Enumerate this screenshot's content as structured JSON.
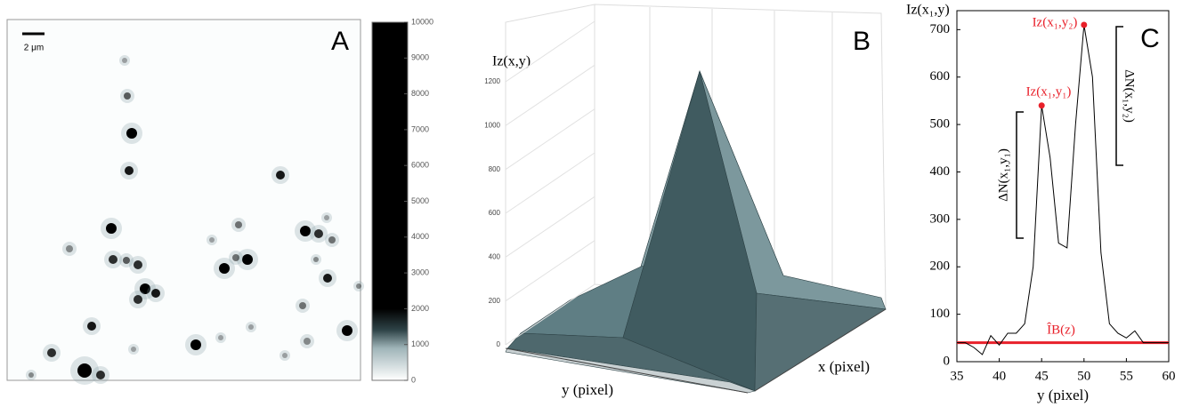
{
  "chart_data": [
    {
      "type": "image",
      "panel_label": "A",
      "scale_bar_label": "2 μm",
      "colorbar_lim": [
        0,
        10000
      ],
      "colorbar_ticks": [
        0,
        1000,
        2000,
        3000,
        4000,
        5000,
        6000,
        7000,
        8000,
        9000,
        10000
      ]
    },
    {
      "type": "surface",
      "panel_label": "B",
      "z_label": "Iz(x,y)",
      "x_label": "y (pixel)",
      "y_label": "x (pixel)",
      "zlim": [
        0,
        1200
      ],
      "zticks": [
        0,
        200,
        400,
        600,
        800,
        1000,
        1200
      ],
      "grid": true
    },
    {
      "type": "line",
      "panel_label": "C",
      "y_label": "Iz(x₁,y)",
      "x_label": "y (pixel)",
      "color": "#000000",
      "x": [
        35,
        36,
        37,
        38,
        39,
        40,
        41,
        42,
        43,
        44,
        45,
        46,
        47,
        48,
        49,
        50,
        51,
        52,
        53,
        54,
        55,
        56,
        57,
        58,
        59,
        60
      ],
      "values": [
        40,
        40,
        30,
        15,
        55,
        35,
        60,
        60,
        80,
        200,
        540,
        430,
        250,
        240,
        500,
        710,
        600,
        230,
        80,
        60,
        50,
        65,
        40,
        40,
        40,
        40
      ],
      "xlim": [
        35,
        60
      ],
      "ylim": [
        0,
        740
      ],
      "xticks": [
        35,
        40,
        45,
        50,
        55,
        60
      ],
      "yticks": [
        0,
        100,
        200,
        300,
        400,
        500,
        600,
        700
      ],
      "baseline": {
        "value": 40,
        "label": "ÎB(z)",
        "color": "#e8202a"
      },
      "peak_labels": [
        "Iz(x₁,y₁)",
        "Iz(x₁,y₂)"
      ],
      "delta_labels": [
        "ΔN(x₁,y₁)",
        "ΔN(x₁,y₂)"
      ]
    }
  ]
}
